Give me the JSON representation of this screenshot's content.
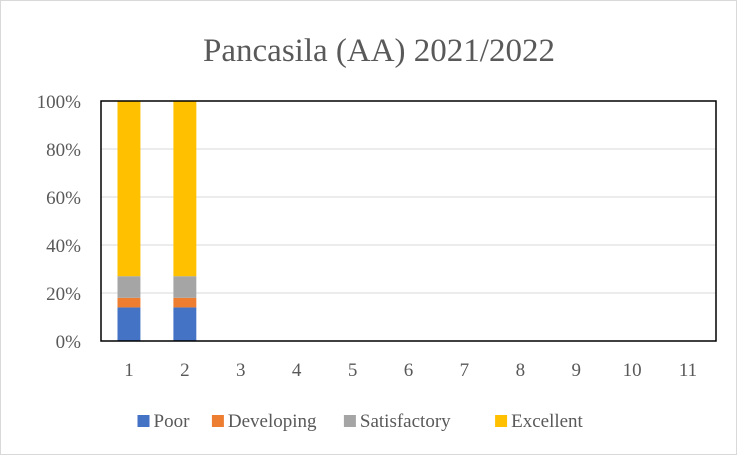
{
  "chart_data": {
    "type": "bar",
    "stacked": "percent",
    "title": "Pancasila (AA) 2021/2022",
    "xlabel": "",
    "ylabel": "",
    "categories": [
      "1",
      "2",
      "3",
      "4",
      "5",
      "6",
      "7",
      "8",
      "9",
      "10",
      "11"
    ],
    "ylim": [
      0,
      100
    ],
    "yticks": [
      "0%",
      "20%",
      "40%",
      "60%",
      "80%",
      "100%"
    ],
    "grid": true,
    "legend_position": "bottom",
    "series": [
      {
        "name": "Poor",
        "color": "#4472C4",
        "values": [
          14,
          14,
          0,
          0,
          0,
          0,
          0,
          0,
          0,
          0,
          0
        ]
      },
      {
        "name": "Developing",
        "color": "#ED7D31",
        "values": [
          4,
          4,
          0,
          0,
          0,
          0,
          0,
          0,
          0,
          0,
          0
        ]
      },
      {
        "name": "Satisfactory",
        "color": "#A5A5A5",
        "values": [
          9,
          9,
          0,
          0,
          0,
          0,
          0,
          0,
          0,
          0,
          0
        ]
      },
      {
        "name": "Excellent",
        "color": "#FFC000",
        "values": [
          73,
          73,
          0,
          0,
          0,
          0,
          0,
          0,
          0,
          0,
          0
        ]
      }
    ]
  }
}
